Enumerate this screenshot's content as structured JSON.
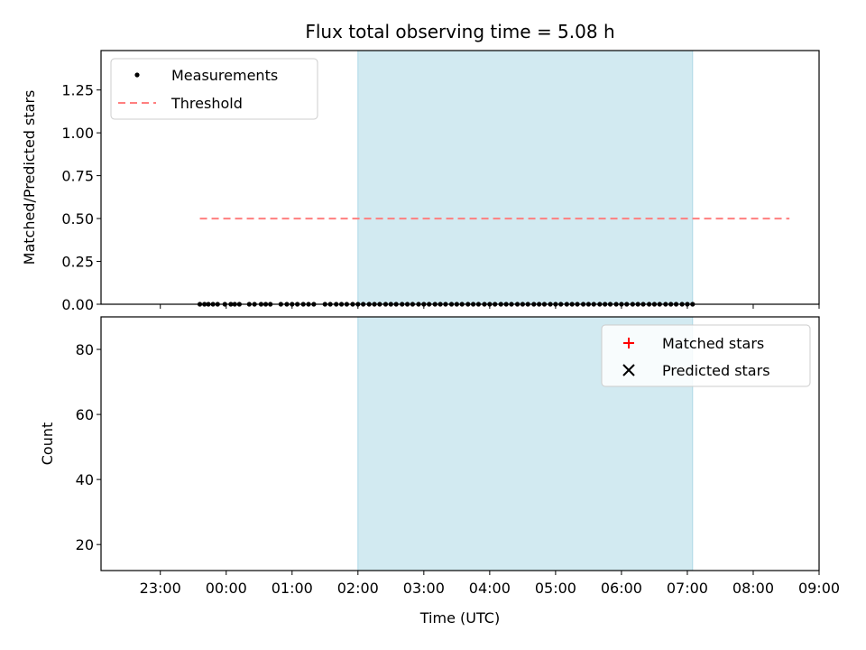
{
  "chart_data": [
    {
      "type": "scatter",
      "title": "Flux total observing time = 5.08 h",
      "xlabel": "",
      "ylabel": "Matched/Predicted stars",
      "xlim_hours": [
        -1.9,
        9.0
      ],
      "ylim": [
        0,
        1.48
      ],
      "y_ticks": [
        "0.00",
        "0.25",
        "0.50",
        "0.75",
        "1.00",
        "1.25"
      ],
      "highlight_span": {
        "x0": 2.0,
        "x1": 7.08,
        "color": "#add8e6"
      },
      "legend_location": "upper left",
      "series": [
        {
          "name": "Measurements",
          "marker": "dot",
          "color": "#000000",
          "x": [
            -0.4,
            -0.33,
            -0.27,
            -0.2,
            -0.13,
            -0.02,
            0.07,
            0.13,
            0.2,
            0.35,
            0.43,
            0.53,
            0.6,
            0.67,
            0.83,
            0.92,
            1.0,
            1.08,
            1.17,
            1.25,
            1.33,
            1.5,
            1.58,
            1.67,
            1.75,
            1.83,
            1.92,
            2.0,
            2.08,
            2.17,
            2.25,
            2.33,
            2.42,
            2.5,
            2.58,
            2.67,
            2.75,
            2.83,
            2.92,
            3.0,
            3.08,
            3.17,
            3.25,
            3.33,
            3.42,
            3.5,
            3.58,
            3.67,
            3.75,
            3.83,
            3.92,
            4.0,
            4.08,
            4.17,
            4.25,
            4.33,
            4.42,
            4.5,
            4.58,
            4.67,
            4.75,
            4.83,
            4.92,
            5.0,
            5.08,
            5.17,
            5.25,
            5.33,
            5.42,
            5.5,
            5.58,
            5.67,
            5.75,
            5.83,
            5.92,
            6.0,
            6.08,
            6.17,
            6.25,
            6.33,
            6.42,
            6.5,
            6.58,
            6.67,
            6.75,
            6.83,
            6.92,
            7.0,
            7.08
          ],
          "y": [
            0.0,
            0.0,
            0.0,
            0.0,
            0.0,
            0.0,
            0.0,
            0.0,
            0.0,
            0.0,
            0.0,
            0.0,
            0.0,
            0.0,
            0.0,
            0.0,
            0.0,
            0.0,
            0.0,
            0.0,
            0.0,
            0.0,
            0.0,
            0.0,
            0.0,
            0.0,
            0.0,
            0.0,
            0.0,
            0.0,
            0.0,
            0.0,
            0.0,
            0.0,
            0.0,
            0.0,
            0.0,
            0.0,
            0.0,
            0.0,
            0.0,
            0.0,
            0.0,
            0.0,
            0.0,
            0.0,
            0.0,
            0.0,
            0.0,
            0.0,
            0.0,
            0.0,
            0.0,
            0.0,
            0.0,
            0.0,
            0.0,
            0.0,
            0.0,
            0.0,
            0.0,
            0.0,
            0.0,
            0.0,
            0.0,
            0.0,
            0.0,
            0.0,
            0.0,
            0.0,
            0.0,
            0.0,
            0.0,
            0.0,
            0.0,
            0.0,
            0.0,
            0.0,
            0.0,
            0.0,
            0.0,
            0.0,
            0.0,
            0.0,
            0.0,
            0.0,
            0.0,
            0.0,
            0.0
          ]
        },
        {
          "name": "Threshold",
          "line": "dashed",
          "color": "#ff7f7f",
          "x": [
            -0.4,
            8.55
          ],
          "y": [
            0.5,
            0.5
          ]
        }
      ]
    },
    {
      "type": "scatter",
      "title": "",
      "xlabel": "Time (UTC)",
      "ylabel": "Count",
      "xlim_hours": [
        -1.9,
        9.0
      ],
      "ylim": [
        12,
        90
      ],
      "y_ticks": [
        "20",
        "40",
        "60",
        "80"
      ],
      "x_ticks": [
        "23:00",
        "00:00",
        "01:00",
        "02:00",
        "03:00",
        "04:00",
        "05:00",
        "06:00",
        "07:00",
        "08:00",
        "09:00"
      ],
      "highlight_span": {
        "x0": 2.0,
        "x1": 7.08,
        "color": "#add8e6"
      },
      "legend_location": "upper right",
      "series": [
        {
          "name": "Matched stars",
          "marker": "plus",
          "color": "#ff0000",
          "x": [],
          "y": []
        },
        {
          "name": "Predicted stars",
          "marker": "x",
          "color": "#000000",
          "x": [],
          "y": []
        }
      ]
    }
  ]
}
